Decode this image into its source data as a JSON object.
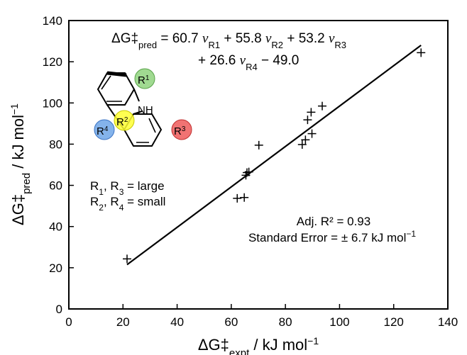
{
  "chart_data": {
    "type": "scatter",
    "title": "",
    "xlabel": {
      "main": "ΔG‡",
      "sub": "expt",
      "unit": " / kJ mol",
      "sup": "−1"
    },
    "ylabel": {
      "main": "ΔG‡",
      "sub": "pred",
      "unit": " / kJ mol",
      "sup": "−1"
    },
    "xlim": [
      0,
      140
    ],
    "ylim": [
      0,
      140
    ],
    "xticks": [
      0,
      20,
      40,
      60,
      80,
      100,
      120,
      140
    ],
    "yticks": [
      0,
      20,
      40,
      60,
      80,
      100,
      120,
      140
    ],
    "grid": false,
    "marker": "+",
    "x": [
      21.5,
      62.2,
      64.8,
      65.4,
      65.8,
      66.5,
      70.2,
      86.2,
      87.4,
      88.2,
      89.5,
      89.8,
      93.6,
      130.1
    ],
    "y": [
      24.3,
      53.7,
      54.1,
      64.9,
      66.2,
      66.5,
      79.5,
      79.8,
      82.1,
      91.8,
      95.5,
      85.1,
      98.5,
      124.4
    ],
    "fit_line": {
      "x": [
        21.5,
        130.1
      ],
      "y": [
        21.5,
        128.0
      ]
    },
    "equation": {
      "line1": [
        {
          "t": "ΔG‡"
        },
        {
          "t": "pred",
          "sub": true
        },
        {
          "t": " = 60.7 "
        },
        {
          "t": "ν",
          "italic": true
        },
        {
          "t": "R1",
          "sub": true
        },
        {
          "t": " + 55.8 "
        },
        {
          "t": "ν",
          "italic": true
        },
        {
          "t": "R2",
          "sub": true
        },
        {
          "t": " + 53.2 "
        },
        {
          "t": "ν",
          "italic": true
        },
        {
          "t": "R3",
          "sub": true
        }
      ],
      "line2": [
        {
          "t": "+ 26.6 "
        },
        {
          "t": "ν",
          "italic": true
        },
        {
          "t": "R4",
          "sub": true
        },
        {
          "t": " − 49.0"
        }
      ]
    },
    "stats": {
      "r2": "Adj. R² = 0.93",
      "se_main": "Standard Error = ± 6.7 kJ mol",
      "se_sup": "−1"
    },
    "structure": {
      "nh": "NH",
      "r1": {
        "main": "R",
        "sup": "1",
        "color": "#8fd47e"
      },
      "r2": {
        "main": "R",
        "sup": "2",
        "color": "#ffff33"
      },
      "r3": {
        "main": "R",
        "sup": "3",
        "color": "#ef5b5b"
      },
      "r4": {
        "main": "R",
        "sup": "4",
        "color": "#6fa6e8"
      },
      "legend_line1": [
        {
          "t": "R"
        },
        {
          "t": "1",
          "sub": true
        },
        {
          "t": ", R"
        },
        {
          "t": "3",
          "sub": true
        },
        {
          "t": " = large"
        }
      ],
      "legend_line2": [
        {
          "t": "R"
        },
        {
          "t": "2",
          "sub": true
        },
        {
          "t": ", R"
        },
        {
          "t": "4",
          "sub": true
        },
        {
          "t": " = small"
        }
      ]
    }
  }
}
